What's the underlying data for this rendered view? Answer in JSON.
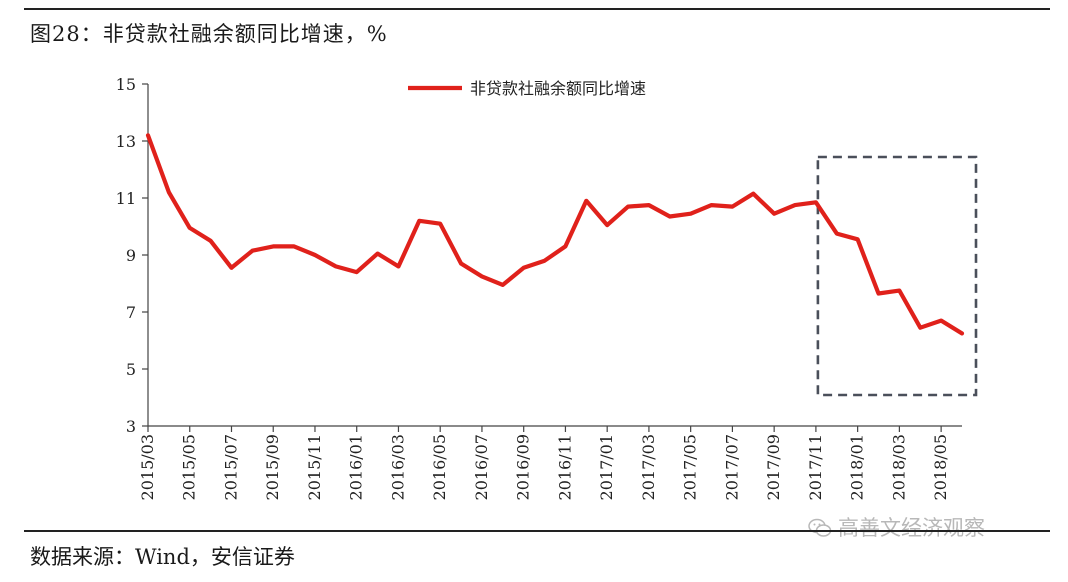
{
  "figure_title": "图28：非贷款社融余额同比增速，%",
  "source_note": "数据来源：Wind，安信证券",
  "watermark_text": "高善文经济观察",
  "watermark_icon": "wechat-icon",
  "colors": {
    "series": "#e0211b",
    "axis": "#444444",
    "highlight_box": "#4a4f5a",
    "rule": "#222222"
  },
  "chart_data": {
    "type": "line",
    "title": "",
    "xlabel": "",
    "ylabel": "",
    "ylim": [
      3,
      15
    ],
    "yticks": [
      3,
      5,
      7,
      9,
      11,
      13,
      15
    ],
    "grid": false,
    "legend_position": "top-center",
    "x": [
      "2015/03",
      "2015/04",
      "2015/05",
      "2015/06",
      "2015/07",
      "2015/08",
      "2015/09",
      "2015/10",
      "2015/11",
      "2015/12",
      "2016/01",
      "2016/02",
      "2016/03",
      "2016/04",
      "2016/05",
      "2016/06",
      "2016/07",
      "2016/08",
      "2016/09",
      "2016/10",
      "2016/11",
      "2016/12",
      "2017/01",
      "2017/02",
      "2017/03",
      "2017/04",
      "2017/05",
      "2017/06",
      "2017/07",
      "2017/08",
      "2017/09",
      "2017/10",
      "2017/11",
      "2017/12",
      "2018/01",
      "2018/02",
      "2018/03",
      "2018/04",
      "2018/05",
      "2018/06"
    ],
    "xtick_labels": [
      "2015/03",
      "2015/05",
      "2015/07",
      "2015/09",
      "2015/11",
      "2016/01",
      "2016/03",
      "2016/05",
      "2016/07",
      "2016/09",
      "2016/11",
      "2017/01",
      "2017/03",
      "2017/05",
      "2017/07",
      "2017/09",
      "2017/11",
      "2018/01",
      "2018/03",
      "2018/05"
    ],
    "series": [
      {
        "name": "非贷款社融余额同比增速",
        "values": [
          13.2,
          11.2,
          9.95,
          9.5,
          8.55,
          9.15,
          9.3,
          9.3,
          9.0,
          8.6,
          8.4,
          9.05,
          8.6,
          10.2,
          10.1,
          8.7,
          8.25,
          7.95,
          8.55,
          8.8,
          9.3,
          10.9,
          10.05,
          10.7,
          10.75,
          10.35,
          10.45,
          10.75,
          10.7,
          11.15,
          10.45,
          10.75,
          10.85,
          9.75,
          9.55,
          7.65,
          7.75,
          6.45,
          6.7,
          6.25
        ]
      }
    ],
    "highlight": {
      "x_start": "2017/11",
      "x_end": "2018/06",
      "style": "dashed-box"
    }
  }
}
